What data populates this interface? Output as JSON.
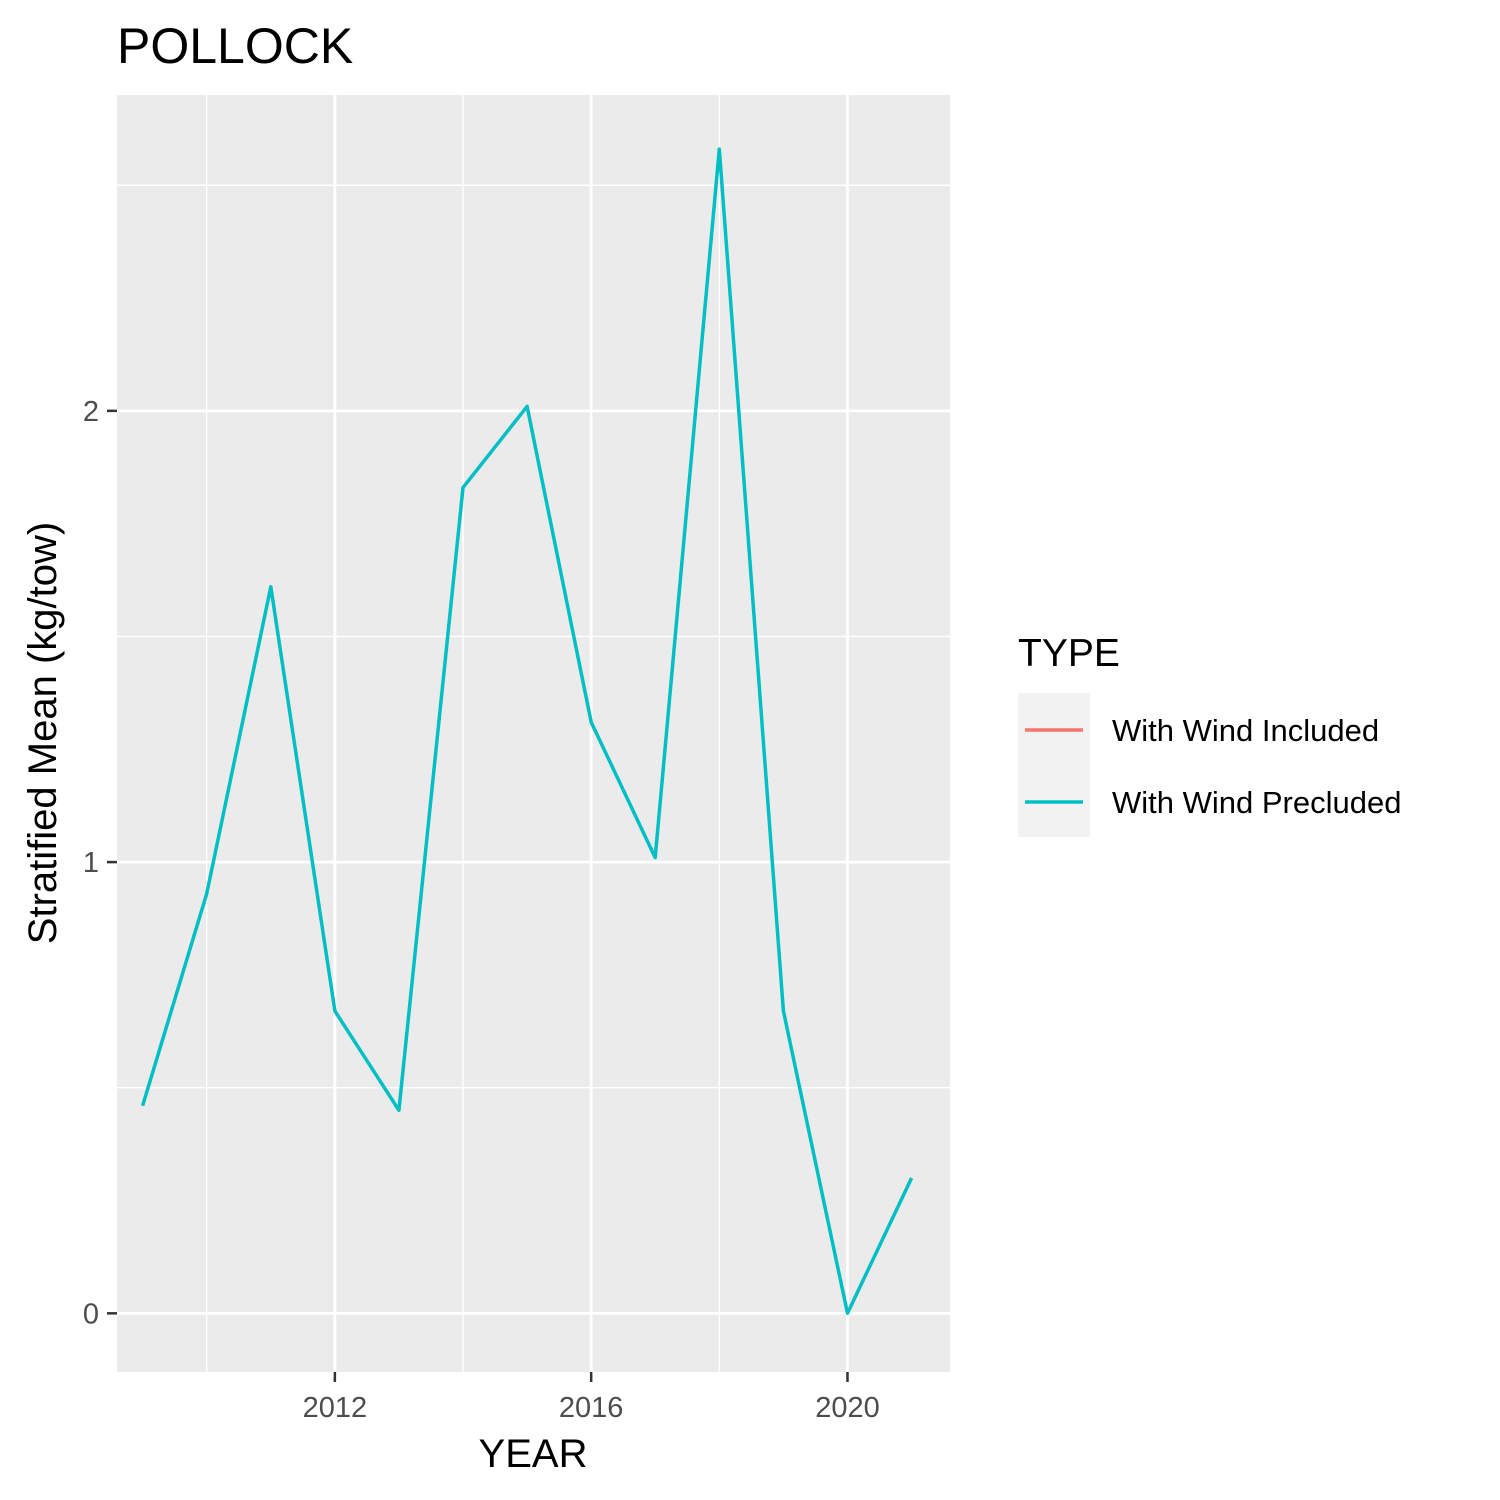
{
  "chart_data": {
    "type": "line",
    "title": "POLLOCK",
    "xlabel": "YEAR",
    "ylabel": "Stratified Mean (kg/tow)",
    "xlim": [
      2008.6,
      2021.6
    ],
    "ylim": [
      -0.13,
      2.7
    ],
    "x_ticks": [
      2012,
      2016,
      2020
    ],
    "x_minor": [
      2010,
      2014,
      2018
    ],
    "y_ticks": [
      0,
      1,
      2
    ],
    "y_minor": [
      0.5,
      1.5,
      2.5
    ],
    "grid": true,
    "legend_position": "right",
    "legend_title": "TYPE",
    "series": [
      {
        "name": "With Wind Included",
        "color": "#F8766D",
        "x": [],
        "values": []
      },
      {
        "name": "With Wind Precluded",
        "color": "#00BFC4",
        "x": [
          2009,
          2010,
          2011,
          2012,
          2013,
          2014,
          2015,
          2016,
          2017,
          2018,
          2019,
          2020,
          2021
        ],
        "values": [
          0.46,
          0.93,
          1.61,
          0.67,
          0.45,
          1.83,
          2.01,
          1.31,
          1.01,
          2.58,
          0.67,
          0.0,
          0.3
        ]
      }
    ]
  }
}
